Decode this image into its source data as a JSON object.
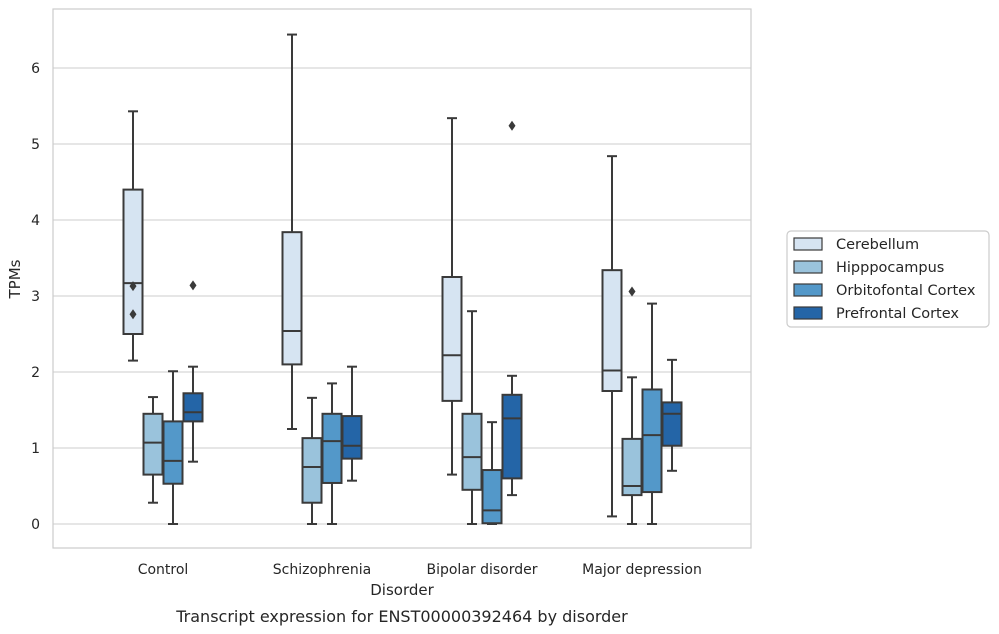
{
  "chart_data": {
    "type": "box",
    "caption": "Transcript expression for ENST00000392464 by disorder",
    "xlabel": "Disorder",
    "ylabel": "TPMs",
    "ylim": [
      -0.32,
      6.78
    ],
    "yticks": [
      0,
      1,
      2,
      3,
      4,
      5,
      6
    ],
    "grid": true,
    "legend_position": "right",
    "categories": [
      "Control",
      "Schizophrenia",
      "Bipolar disorder",
      "Major depression"
    ],
    "series": [
      {
        "name": "Cerebellum",
        "color": "#d6e4f2",
        "boxes": [
          {
            "whisker_low": 2.15,
            "q1": 2.5,
            "median": 3.17,
            "q3": 4.4,
            "whisker_high": 5.43,
            "outliers": [
              3.13,
              2.76
            ]
          },
          {
            "whisker_low": 1.25,
            "q1": 2.1,
            "median": 2.54,
            "q3": 3.84,
            "whisker_high": 6.44,
            "outliers": []
          },
          {
            "whisker_low": 0.65,
            "q1": 1.62,
            "median": 2.22,
            "q3": 3.25,
            "whisker_high": 5.34,
            "outliers": []
          },
          {
            "whisker_low": 0.1,
            "q1": 1.75,
            "median": 2.02,
            "q3": 3.34,
            "whisker_high": 4.84,
            "outliers": []
          }
        ]
      },
      {
        "name": "Hipppocampus",
        "color": "#9ac3dc",
        "boxes": [
          {
            "whisker_low": 0.28,
            "q1": 0.65,
            "median": 1.07,
            "q3": 1.45,
            "whisker_high": 1.67,
            "outliers": []
          },
          {
            "whisker_low": 0.0,
            "q1": 0.28,
            "median": 0.75,
            "q3": 1.13,
            "whisker_high": 1.66,
            "outliers": []
          },
          {
            "whisker_low": 0.0,
            "q1": 0.45,
            "median": 0.88,
            "q3": 1.45,
            "whisker_high": 2.8,
            "outliers": []
          },
          {
            "whisker_low": 0.0,
            "q1": 0.38,
            "median": 0.5,
            "q3": 1.12,
            "whisker_high": 1.93,
            "outliers": [
              3.06
            ]
          }
        ]
      },
      {
        "name": "Orbitofontal Cortex",
        "color": "#5398c9",
        "boxes": [
          {
            "whisker_low": 0.0,
            "q1": 0.53,
            "median": 0.83,
            "q3": 1.35,
            "whisker_high": 2.01,
            "outliers": []
          },
          {
            "whisker_low": 0.0,
            "q1": 0.54,
            "median": 1.09,
            "q3": 1.45,
            "whisker_high": 1.85,
            "outliers": []
          },
          {
            "whisker_low": 0.0,
            "q1": 0.01,
            "median": 0.18,
            "q3": 0.71,
            "whisker_high": 1.34,
            "outliers": []
          },
          {
            "whisker_low": 0.0,
            "q1": 0.42,
            "median": 1.17,
            "q3": 1.77,
            "whisker_high": 2.9,
            "outliers": []
          }
        ]
      },
      {
        "name": "Prefrontal Cortex",
        "color": "#2465a7",
        "boxes": [
          {
            "whisker_low": 0.82,
            "q1": 1.35,
            "median": 1.47,
            "q3": 1.72,
            "whisker_high": 2.07,
            "outliers": [
              3.14
            ]
          },
          {
            "whisker_low": 0.57,
            "q1": 0.86,
            "median": 1.03,
            "q3": 1.42,
            "whisker_high": 2.07,
            "outliers": []
          },
          {
            "whisker_low": 0.38,
            "q1": 0.6,
            "median": 1.39,
            "q3": 1.7,
            "whisker_high": 1.95,
            "outliers": [
              5.24
            ]
          },
          {
            "whisker_low": 0.7,
            "q1": 1.03,
            "median": 1.45,
            "q3": 1.6,
            "whisker_high": 2.16,
            "outliers": []
          }
        ]
      }
    ]
  }
}
